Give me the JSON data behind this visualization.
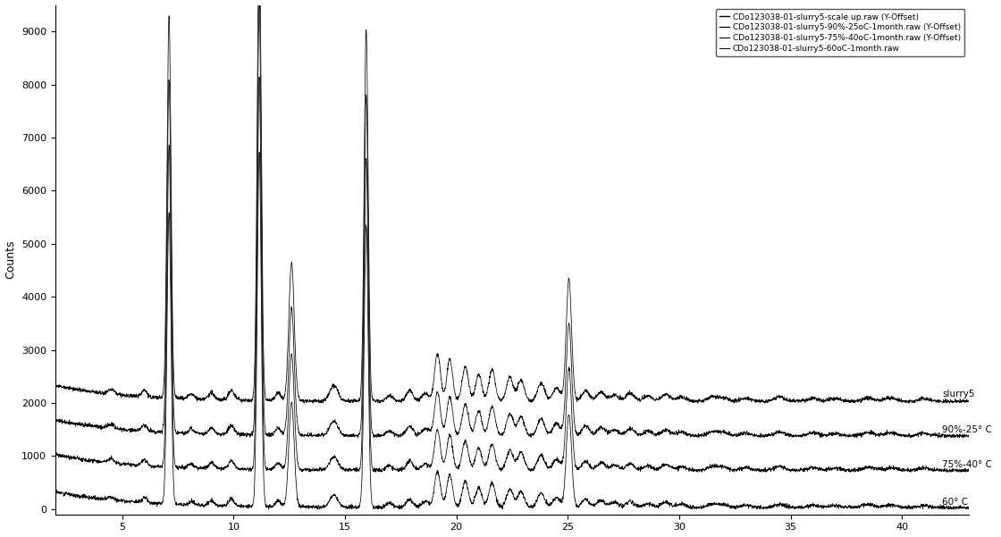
{
  "title": "",
  "xlabel": "",
  "ylabel": "Counts",
  "xlim": [
    2,
    43
  ],
  "ylim": [
    -100,
    9500
  ],
  "yticks": [
    0,
    1000,
    2000,
    3000,
    4000,
    5000,
    6000,
    7000,
    8000,
    9000
  ],
  "xticks": [
    5,
    10,
    15,
    20,
    25,
    30,
    35,
    40
  ],
  "background_color": "#ffffff",
  "line_color": "#000000",
  "legend_labels": [
    "CDo123038-01-slurry5-scale up.raw (Y-Offset)",
    "CDo123038-01-slurry5-90%-25oC-1month.raw (Y-Offset)",
    "CDo123038-01-slurry5-75%-40oC-1month.raw (Y-Offset)",
    "CDo123038-01-slurry5-60oC-1month.raw"
  ],
  "curve_labels": [
    "slurry5",
    "90%-25° C",
    "75%-40° C",
    "60° C"
  ],
  "offsets": [
    2000,
    1350,
    700,
    0
  ],
  "peak_positions": [
    4.5,
    6.0,
    7.1,
    8.1,
    9.0,
    9.9,
    11.15,
    12.0,
    12.6,
    14.5,
    15.95,
    17.0,
    17.9,
    18.6,
    19.15,
    19.7,
    20.4,
    21.0,
    21.6,
    22.4,
    22.9,
    23.8,
    24.5,
    25.05,
    25.8,
    26.5,
    27.1,
    27.8,
    28.6,
    29.4,
    30.1,
    31.5,
    32.0,
    33.0,
    34.5,
    36.0,
    37.0,
    38.5,
    39.5,
    41.0
  ],
  "peak_heights": [
    80,
    120,
    7200,
    90,
    120,
    180,
    8800,
    150,
    2600,
    300,
    7000,
    100,
    200,
    150,
    900,
    800,
    650,
    500,
    600,
    450,
    400,
    350,
    250,
    2300,
    200,
    180,
    120,
    150,
    100,
    130,
    80,
    90,
    70,
    60,
    80,
    60,
    50,
    70,
    60,
    50
  ],
  "peak_widths": [
    0.15,
    0.12,
    0.09,
    0.12,
    0.13,
    0.13,
    0.09,
    0.12,
    0.12,
    0.18,
    0.09,
    0.15,
    0.15,
    0.16,
    0.13,
    0.13,
    0.14,
    0.14,
    0.14,
    0.15,
    0.15,
    0.16,
    0.17,
    0.12,
    0.17,
    0.18,
    0.19,
    0.19,
    0.2,
    0.2,
    0.21,
    0.22,
    0.22,
    0.23,
    0.24,
    0.25,
    0.25,
    0.26,
    0.26,
    0.27
  ],
  "noise_level": 18,
  "figsize": [
    11.2,
    6.01
  ],
  "dpi": 100
}
